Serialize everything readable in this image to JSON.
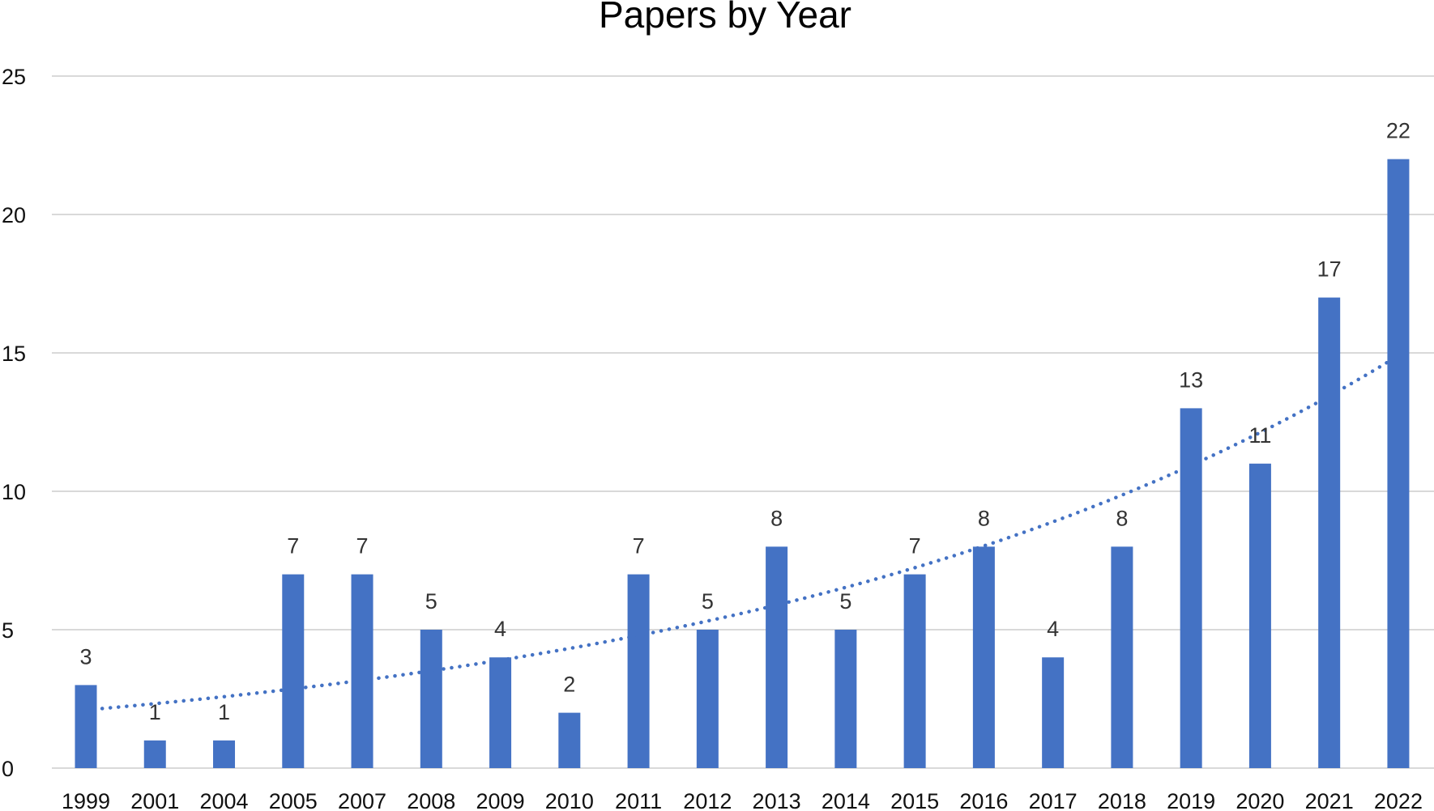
{
  "chart_data": {
    "type": "bar",
    "title": "Papers by Year",
    "xlabel": "",
    "ylabel": "",
    "categories": [
      "1999",
      "2001",
      "2004",
      "2005",
      "2007",
      "2008",
      "2009",
      "2010",
      "2011",
      "2012",
      "2013",
      "2014",
      "2015",
      "2016",
      "2017",
      "2018",
      "2019",
      "2020",
      "2021",
      "2022"
    ],
    "values": [
      3,
      1,
      1,
      7,
      7,
      5,
      4,
      2,
      7,
      5,
      8,
      5,
      7,
      8,
      4,
      8,
      13,
      11,
      17,
      22
    ],
    "data_labels": [
      "3",
      "1",
      "1",
      "7",
      "7",
      "5",
      "4",
      "2",
      "7",
      "5",
      "8",
      "5",
      "7",
      "8",
      "4",
      "8",
      "13",
      "11",
      "17",
      "22"
    ],
    "ylim": [
      0,
      25
    ],
    "yticks": [
      0,
      5,
      10,
      15,
      20,
      25
    ],
    "ytick_labels": [
      "0",
      "5",
      "10",
      "15",
      "20",
      "25"
    ],
    "grid": true,
    "legend": "none",
    "trendline": {
      "type": "exponential",
      "style": "dotted",
      "start_value": 2.1,
      "end_value": 14.9
    },
    "colors": {
      "bar": "#4472C4",
      "trendline": "#4472C4",
      "grid": "#D9D9D9"
    }
  }
}
